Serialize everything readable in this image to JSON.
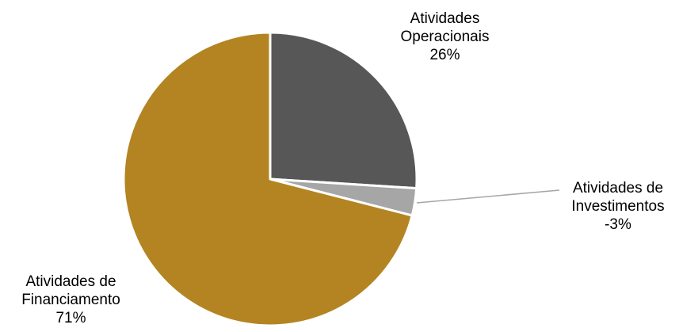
{
  "chart_data": {
    "type": "pie",
    "title": "",
    "slices": [
      {
        "label_lines": [
          "Atividades",
          "Operacionais"
        ],
        "percent_label": "26%",
        "value": 26,
        "color": "#575757"
      },
      {
        "label_lines": [
          "Atividades de",
          "Investimentos"
        ],
        "percent_label": "-3%",
        "value": 3,
        "color": "#a6a6a6"
      },
      {
        "label_lines": [
          "Atividades de",
          "Financiamento"
        ],
        "percent_label": "71%",
        "value": 71,
        "color": "#b38421"
      }
    ],
    "start_angle_deg": 0,
    "direction": "clockwise",
    "slice_border_color": "#ffffff",
    "leader_line_color": "#a6a6a6",
    "legend": "none"
  }
}
